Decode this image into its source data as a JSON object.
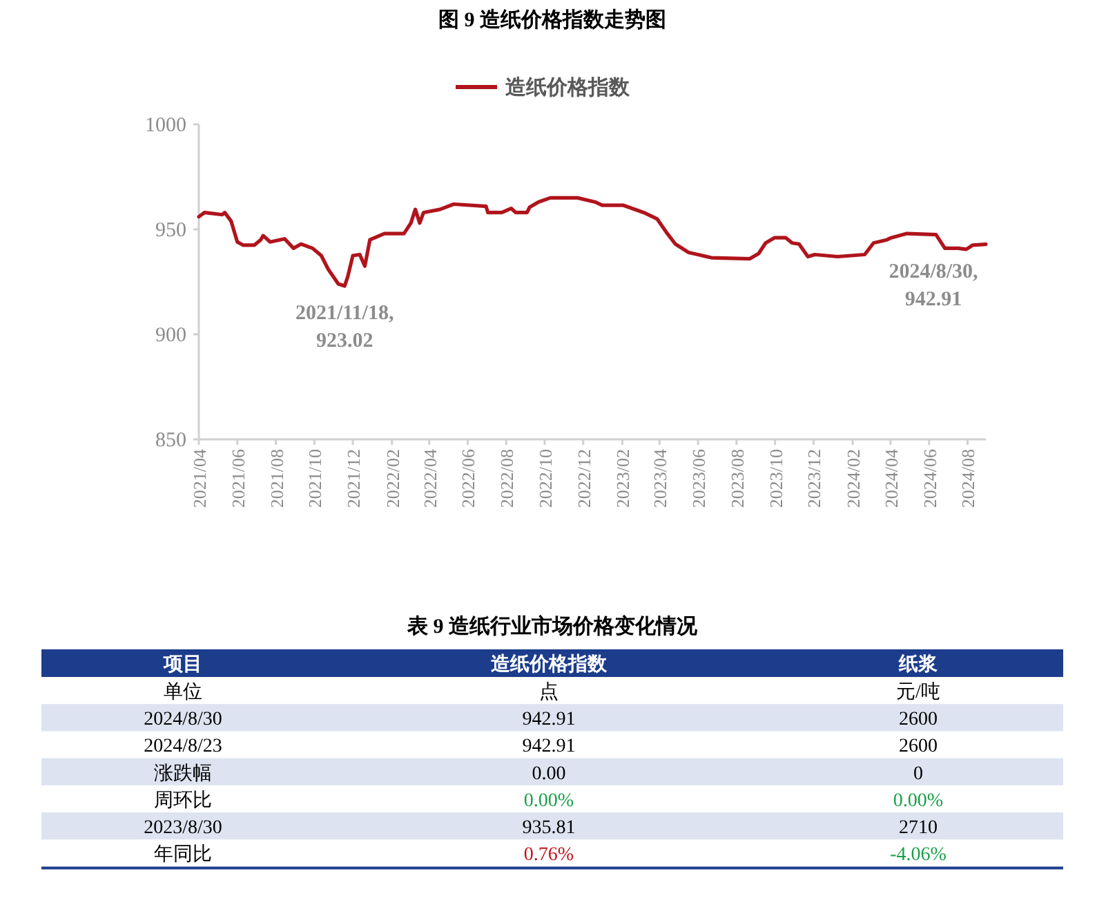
{
  "chart_data": [
    {
      "type": "line",
      "title": "图 9 造纸价格指数走势图",
      "legend": "top",
      "x": [
        "2021-04-01",
        "2021-04-10",
        "2021-05-08",
        "2021-05-12",
        "2021-05-22",
        "2021-06-01",
        "2021-06-10",
        "2021-06-28",
        "2021-07-08",
        "2021-07-12",
        "2021-07-23",
        "2021-08-15",
        "2021-08-29",
        "2021-09-10",
        "2021-09-28",
        "2021-10-12",
        "2021-10-23",
        "2021-11-08",
        "2021-11-18",
        "2021-11-23",
        "2021-12-01",
        "2021-12-12",
        "2021-12-20",
        "2021-12-28",
        "2022-01-20",
        "2022-02-20",
        "2022-03-03",
        "2022-03-10",
        "2022-03-17",
        "2022-03-23",
        "2022-04-18",
        "2022-05-10",
        "2022-06-30",
        "2022-07-03",
        "2022-07-25",
        "2022-08-09",
        "2022-08-16",
        "2022-09-03",
        "2022-09-07",
        "2022-09-21",
        "2022-10-10",
        "2022-11-22",
        "2022-12-20",
        "2022-12-31",
        "2023-02-02",
        "2023-03-07",
        "2023-03-28",
        "2023-04-12",
        "2023-04-26",
        "2023-05-17",
        "2023-06-22",
        "2023-08-22",
        "2023-09-05",
        "2023-09-16",
        "2023-09-30",
        "2023-10-18",
        "2023-10-28",
        "2023-11-08",
        "2023-11-22",
        "2023-12-03",
        "2024-01-08",
        "2024-02-20",
        "2024-03-05",
        "2024-03-26",
        "2024-04-02",
        "2024-04-27",
        "2024-06-12",
        "2024-06-26",
        "2024-07-17",
        "2024-07-30",
        "2024-08-09",
        "2024-08-30"
      ],
      "series": [
        {
          "name": "造纸价格指数",
          "color": "#b0141c",
          "values": [
            956,
            958,
            957,
            958,
            954,
            944,
            942.5,
            942.5,
            945,
            947,
            944,
            945.5,
            941,
            943,
            941,
            937.5,
            931,
            924,
            923.02,
            927.5,
            937.5,
            938,
            932.5,
            945,
            948,
            948,
            953,
            959.5,
            953,
            958,
            959.5,
            962,
            961,
            958,
            958,
            960,
            958,
            958,
            960.5,
            963,
            965,
            965,
            963,
            961.5,
            961.5,
            958,
            955,
            948.5,
            943,
            939,
            936.5,
            936,
            938.5,
            943.5,
            946,
            946,
            943.5,
            943,
            937,
            938,
            937,
            938,
            943.5,
            945,
            946,
            948,
            947.5,
            941,
            941,
            940.5,
            942.5,
            942.91
          ]
        }
      ],
      "xlim": [
        "2021-04-01",
        "2024-08-30"
      ],
      "xticks": [
        {
          "value": "2021-04",
          "label": "2021/04"
        },
        {
          "value": "2021-06",
          "label": "2021/06"
        },
        {
          "value": "2021-08",
          "label": "2021/08"
        },
        {
          "value": "2021-10",
          "label": "2021/10"
        },
        {
          "value": "2021-12",
          "label": "2021/12"
        },
        {
          "value": "2022-02",
          "label": "2022/02"
        },
        {
          "value": "2022-04",
          "label": "2022/04"
        },
        {
          "value": "2022-06",
          "label": "2022/06"
        },
        {
          "value": "2022-08",
          "label": "2022/08"
        },
        {
          "value": "2022-10",
          "label": "2022/10"
        },
        {
          "value": "2022-12",
          "label": "2022/12"
        },
        {
          "value": "2023-02",
          "label": "2023/02"
        },
        {
          "value": "2023-04",
          "label": "2023/04"
        },
        {
          "value": "2023-06",
          "label": "2023/06"
        },
        {
          "value": "2023-08",
          "label": "2023/08"
        },
        {
          "value": "2023-10",
          "label": "2023/10"
        },
        {
          "value": "2023-12",
          "label": "2023/12"
        },
        {
          "value": "2024-02",
          "label": "2024/02"
        },
        {
          "value": "2024-04",
          "label": "2024/04"
        },
        {
          "value": "2024-06",
          "label": "2024/06"
        },
        {
          "value": "2024-08",
          "label": "2024/08"
        }
      ],
      "ylim": [
        850,
        1000
      ],
      "yticks": [
        850,
        900,
        950,
        1000
      ],
      "annotations": [
        {
          "text": "2021/11/18,\n923.02",
          "x": "2021-11-18",
          "y": 923.02
        },
        {
          "text": "2024/8/30,\n942.91",
          "x": "2024-08-30",
          "y": 942.91
        }
      ]
    },
    {
      "type": "other",
      "title": "表 9 造纸行业市场价格变化情况",
      "categories": [
        "项目",
        "造纸价格指数",
        "纸浆"
      ],
      "y_categories": [
        "单位",
        "2024/8/30",
        "2024/8/23",
        "涨跌幅",
        "周环比",
        "2023/8/30",
        "年同比"
      ],
      "cell_labels": [
        [
          "点",
          "元/吨"
        ],
        [
          "942.91",
          "2600"
        ],
        [
          "942.91",
          "2600"
        ],
        [
          "0.00",
          "0"
        ],
        [
          "0.00%",
          "0.00%"
        ],
        [
          "935.81",
          "2710"
        ],
        [
          "0.76%",
          "-4.06%"
        ]
      ],
      "colors": [
        [
          null,
          null
        ],
        [
          null,
          null
        ],
        [
          null,
          null
        ],
        [
          null,
          null
        ],
        [
          "#1aa04a",
          "#1aa04a"
        ],
        [
          null,
          null
        ],
        [
          "#c0141c",
          "#1aa04a"
        ]
      ]
    }
  ]
}
